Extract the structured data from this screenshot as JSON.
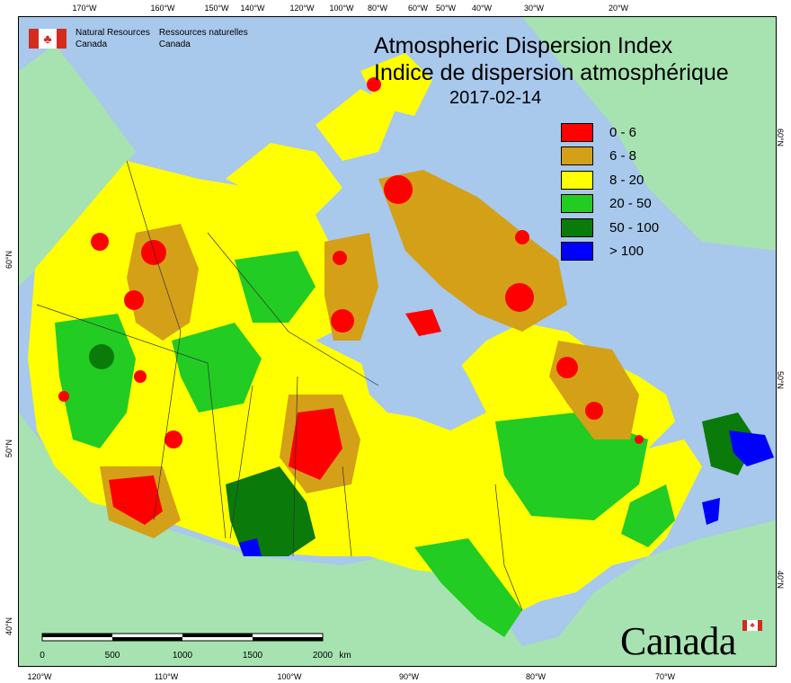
{
  "map": {
    "title_en": "Atmospheric Dispersion Index",
    "title_fr": "Indice de dispersion atmosphérique",
    "date": "2017-02-14",
    "agency_en_line1": "Natural Resources",
    "agency_en_line2": "Canada",
    "agency_fr_line1": "Ressources naturelles",
    "agency_fr_line2": "Canada",
    "wordmark": "Canada",
    "legend": [
      {
        "label": "0 - 6",
        "color": "#ff0000"
      },
      {
        "label": "6 - 8",
        "color": "#d4a017"
      },
      {
        "label": "8 - 20",
        "color": "#ffff00"
      },
      {
        "label": "20 - 50",
        "color": "#22cc22"
      },
      {
        "label": "50 - 100",
        "color": "#0a7a0a"
      },
      {
        "label": "> 100",
        "color": "#0000ff"
      }
    ],
    "top_ticks": [
      "170°W",
      "160°W",
      "150°W",
      "140°W",
      "120°W",
      "100°W",
      "80°W",
      "60°W",
      "50°W",
      "40°W",
      "30°W",
      "20°W"
    ],
    "bottom_ticks": [
      "120°W",
      "110°W",
      "100°W",
      "90°W",
      "80°W",
      "70°W"
    ],
    "left_ticks": [
      "60°N",
      "50°N",
      "40°N"
    ],
    "right_ticks": [
      "60°N",
      "50°N",
      "40°N"
    ],
    "scale": {
      "labels": [
        "0",
        "500",
        "1000",
        "1500",
        "2000"
      ],
      "unit": "km"
    },
    "colors": {
      "ocean": "#a8c8ec",
      "land_other": "#a6e3b0"
    }
  }
}
